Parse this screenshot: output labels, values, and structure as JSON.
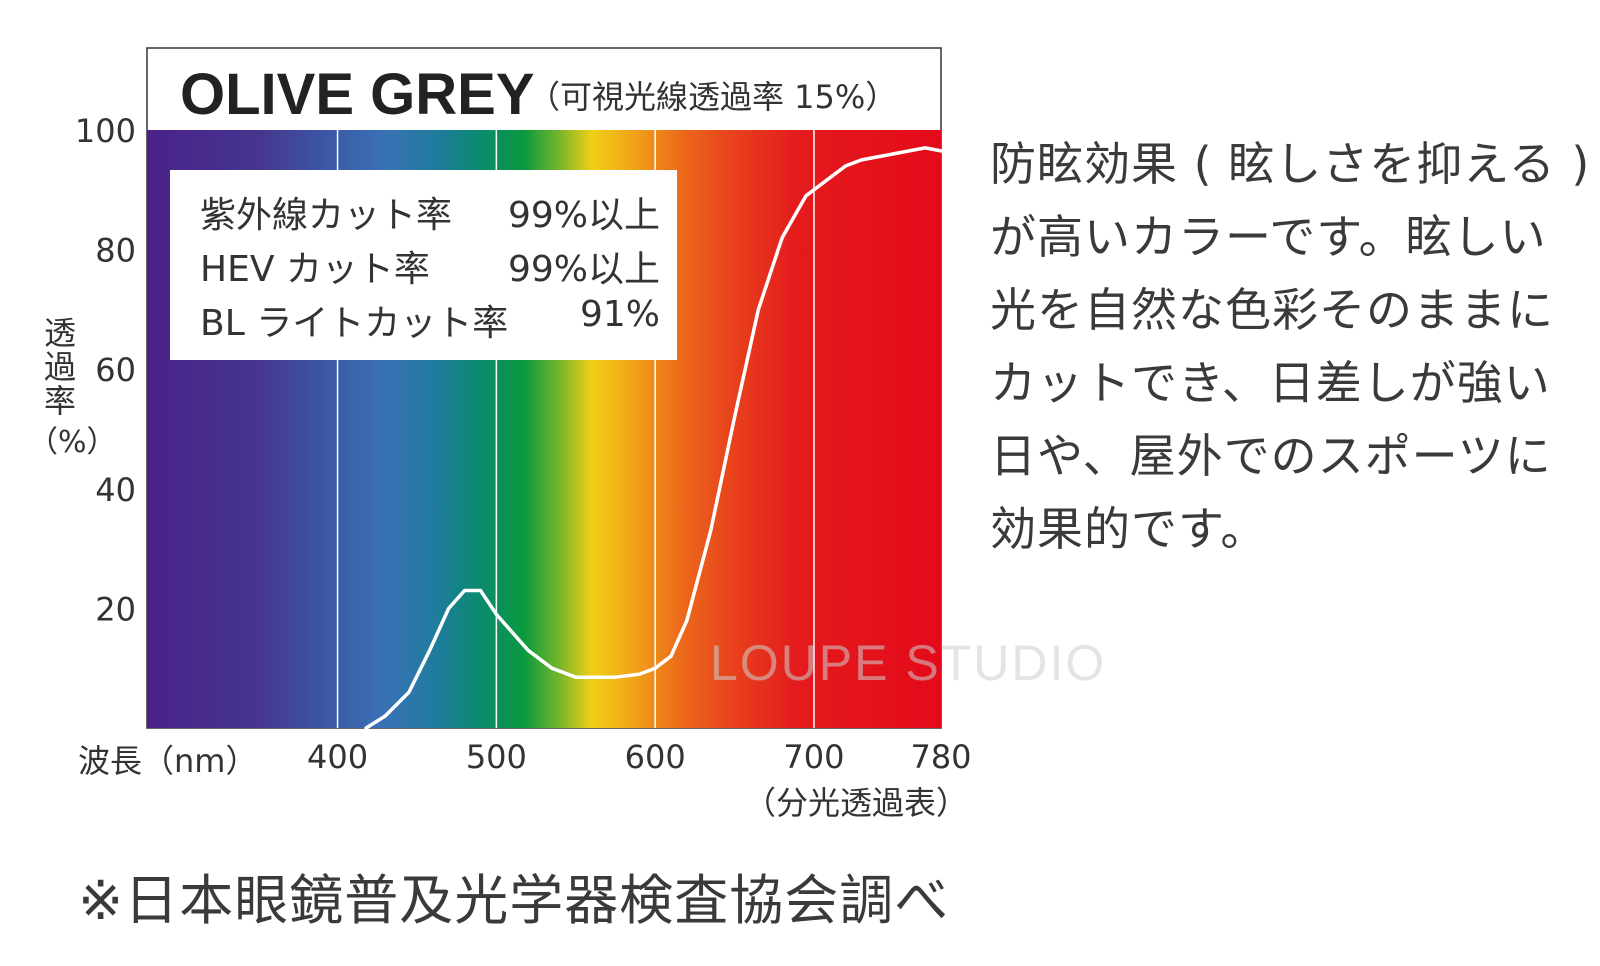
{
  "chart_data": {
    "type": "line",
    "title": "OLIVE GREY",
    "subtitle": "（可視光線透過率 15%）",
    "xlabel": "波長（nm）",
    "ylabel": "透過率",
    "ylabel_unit": "（%）",
    "x_note": "（分光透過表）",
    "xlim": [
      280,
      780
    ],
    "ylim": [
      0,
      100
    ],
    "x_ticks": [
      "400",
      "500",
      "600",
      "700",
      "780"
    ],
    "y_ticks": [
      "20",
      "40",
      "60",
      "80",
      "100"
    ],
    "grid_x": [
      400,
      500,
      600,
      700
    ],
    "series": [
      {
        "x": [
          418,
          430,
          445,
          458,
          470,
          480,
          490,
          500,
          510,
          520,
          535,
          550,
          560,
          575,
          590,
          600,
          610,
          620,
          635,
          650,
          665,
          680,
          695,
          710,
          720,
          730,
          740,
          750,
          760,
          770,
          780
        ],
        "y": [
          0,
          2,
          6,
          13,
          20,
          23,
          23,
          19,
          16,
          13,
          10,
          8.5,
          8.5,
          8.5,
          9,
          10,
          12,
          18,
          33,
          52,
          70,
          82,
          89,
          92,
          94,
          95,
          95.5,
          96,
          96.5,
          97,
          96.5
        ],
        "color": "#ffffff"
      }
    ]
  },
  "cuts": [
    {
      "label": "紫外線カット率",
      "value": "99%以上"
    },
    {
      "label": "HEV カット率",
      "value": "99%以上"
    },
    {
      "label": "BL ライトカット率",
      "value": "91%"
    }
  ],
  "description": [
    "防眩効果 ( 眩しさを抑える )",
    "が高いカラーです。眩しい",
    "光を自然な色彩そのままに",
    "カットでき、日差しが強い",
    "日や、屋外でのスポーツに",
    "効果的です。"
  ],
  "footnote": "※日本眼鏡普及光学器検査協会調べ",
  "watermark": "LOUPE STUDIO"
}
